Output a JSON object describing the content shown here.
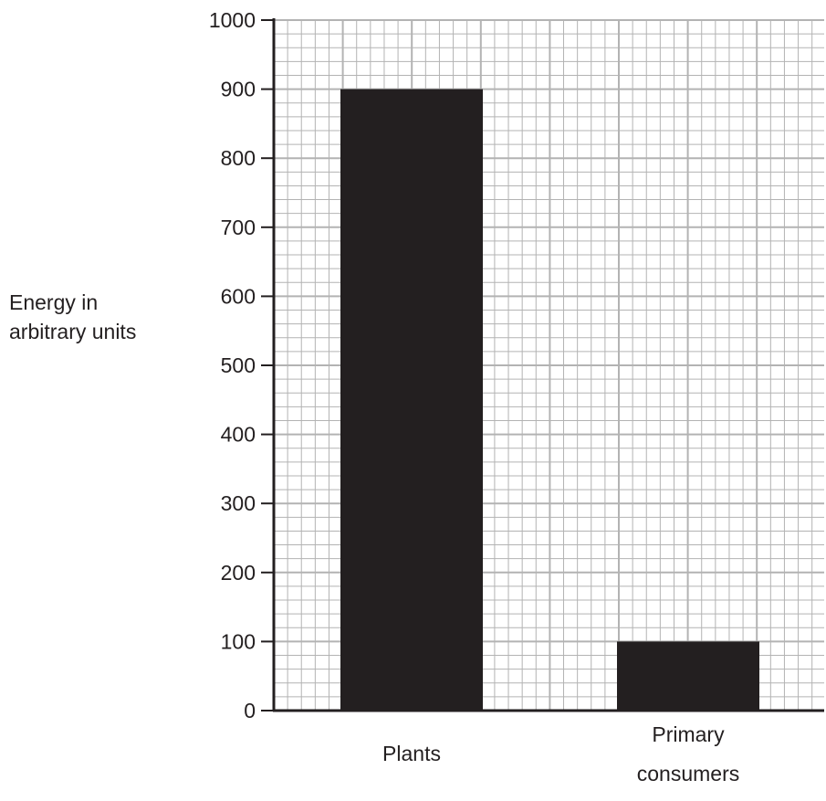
{
  "chart_data": {
    "type": "bar",
    "categories": [
      "Plants",
      "Primary\nconsumers"
    ],
    "values": [
      900,
      100
    ],
    "ylabel": "Energy in\narbitrary units",
    "xlabel": "",
    "ylim": [
      0,
      1000
    ],
    "yticks": [
      0,
      100,
      200,
      300,
      400,
      500,
      600,
      700,
      800,
      900,
      1000
    ],
    "grid": true,
    "bar_color": "#231f20",
    "grid_color": "#b3b3b3"
  }
}
